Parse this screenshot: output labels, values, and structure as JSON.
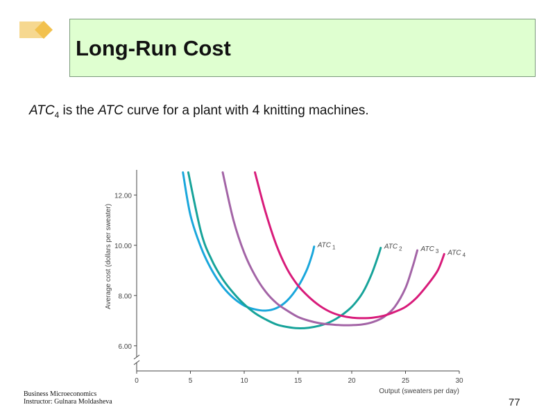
{
  "slide": {
    "title": "Long-Run Cost",
    "subtitle": {
      "atc4_main": "ATC",
      "atc4_sub": "4",
      "text1": " is the ",
      "atc_word": "ATC",
      "text2": " curve for a plant  with 4 knitting  machines."
    },
    "footer_line1": "Business Microeconomics",
    "footer_line2": "Instructor: Gulnara Moldasheva",
    "page_number": "77",
    "colors": {
      "title_bg": "#dfffd0",
      "deco": "#f6d890"
    }
  },
  "chart_data": {
    "type": "line",
    "xlabel": "Output (sweaters per day)",
    "ylabel": "Average cost (dollars per sweater)",
    "xlim": [
      0,
      30
    ],
    "ylim": [
      5,
      13
    ],
    "axis_break": true,
    "grid": false,
    "x_ticks": [
      0,
      5,
      10,
      15,
      20,
      25,
      30
    ],
    "y_ticks": [
      6,
      8,
      10,
      12
    ],
    "y_tick_labels": [
      "6.00",
      "8.00",
      "10.00",
      "12.00"
    ],
    "series": [
      {
        "name": "ATC",
        "name_sub": "1",
        "color": "#1aa7dc",
        "points": [
          [
            4.3,
            12.9
          ],
          [
            5,
            11.2
          ],
          [
            6,
            9.9
          ],
          [
            7,
            9.0
          ],
          [
            8,
            8.35
          ],
          [
            9,
            7.9
          ],
          [
            10,
            7.6
          ],
          [
            11,
            7.45
          ],
          [
            12,
            7.4
          ],
          [
            13,
            7.5
          ],
          [
            14,
            7.8
          ],
          [
            15,
            8.35
          ],
          [
            15.8,
            9.0
          ],
          [
            16.3,
            9.6
          ],
          [
            16.5,
            9.95
          ]
        ]
      },
      {
        "name": "ATC",
        "name_sub": "2",
        "color": "#17a39a",
        "points": [
          [
            4.8,
            12.9
          ],
          [
            6,
            10.5
          ],
          [
            7,
            9.4
          ],
          [
            8,
            8.65
          ],
          [
            9,
            8.1
          ],
          [
            10,
            7.65
          ],
          [
            11,
            7.3
          ],
          [
            12,
            7.05
          ],
          [
            13,
            6.85
          ],
          [
            14,
            6.75
          ],
          [
            15,
            6.7
          ],
          [
            16,
            6.72
          ],
          [
            17,
            6.8
          ],
          [
            18,
            6.95
          ],
          [
            19,
            7.2
          ],
          [
            20,
            7.55
          ],
          [
            21,
            8.1
          ],
          [
            21.8,
            8.8
          ],
          [
            22.4,
            9.5
          ],
          [
            22.7,
            9.9
          ]
        ]
      },
      {
        "name": "ATC",
        "name_sub": "3",
        "color": "#a364a6",
        "points": [
          [
            8,
            12.9
          ],
          [
            9,
            11.0
          ],
          [
            10,
            9.7
          ],
          [
            11,
            8.8
          ],
          [
            12,
            8.15
          ],
          [
            13,
            7.7
          ],
          [
            14,
            7.4
          ],
          [
            15,
            7.15
          ],
          [
            16,
            7.0
          ],
          [
            17,
            6.9
          ],
          [
            18,
            6.85
          ],
          [
            19,
            6.82
          ],
          [
            20,
            6.82
          ],
          [
            21,
            6.85
          ],
          [
            22,
            6.95
          ],
          [
            23,
            7.15
          ],
          [
            24,
            7.55
          ],
          [
            25,
            8.3
          ],
          [
            25.7,
            9.2
          ],
          [
            26.1,
            9.8
          ]
        ]
      },
      {
        "name": "ATC",
        "name_sub": "4",
        "color": "#d81b7a",
        "points": [
          [
            11,
            12.9
          ],
          [
            12,
            11.3
          ],
          [
            13,
            10.0
          ],
          [
            14,
            9.05
          ],
          [
            15,
            8.4
          ],
          [
            16,
            7.95
          ],
          [
            17,
            7.6
          ],
          [
            18,
            7.35
          ],
          [
            19,
            7.2
          ],
          [
            20,
            7.12
          ],
          [
            21,
            7.1
          ],
          [
            22,
            7.12
          ],
          [
            23,
            7.2
          ],
          [
            24,
            7.35
          ],
          [
            25,
            7.55
          ],
          [
            26,
            7.9
          ],
          [
            27,
            8.4
          ],
          [
            28,
            9.0
          ],
          [
            28.6,
            9.65
          ]
        ]
      }
    ]
  }
}
